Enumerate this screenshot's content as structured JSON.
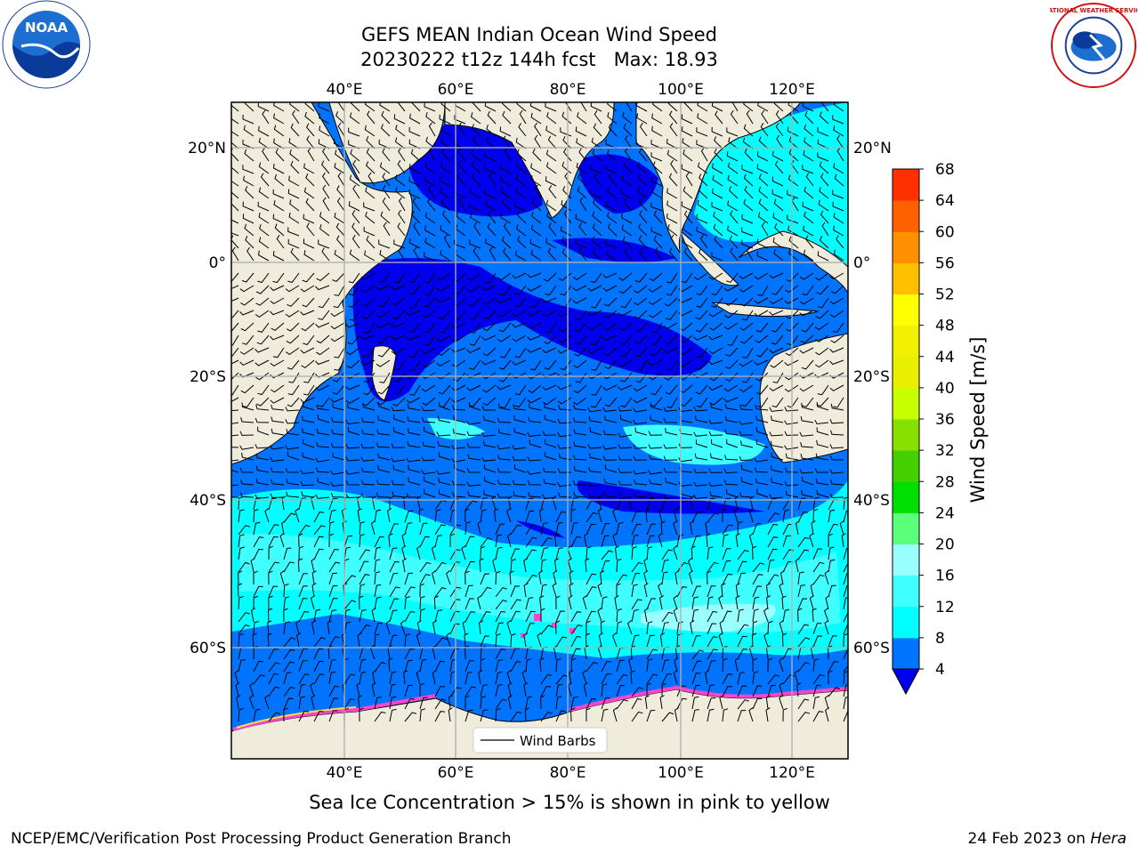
{
  "title": {
    "line1": "GEFS MEAN Indian Ocean Wind Speed",
    "line2": "20230222 t12z 144h fcst   Max: 18.93"
  },
  "map": {
    "lon_ticks_top": [
      "40°E",
      "60°E",
      "80°E",
      "100°E",
      "120°E"
    ],
    "lon_ticks_bottom": [
      "40°E",
      "60°E",
      "80°E",
      "100°E",
      "120°E"
    ],
    "lat_ticks_left": [
      "20°N",
      "0°",
      "20°S",
      "40°S",
      "60°S"
    ],
    "lat_ticks_right": [
      "20°N",
      "0°",
      "20°S",
      "40°S",
      "60°S"
    ],
    "legend_label": "Wind Barbs",
    "colors": {
      "land": "#efecdc",
      "ocean_4_8": "#0073ff",
      "ocean_0_4": "#0000ee",
      "ocean_8_12": "#00ffff",
      "ocean_12_16": "#40ffff",
      "ocean_16_20": "#99ffff",
      "sea_ice": "#ff44cc"
    }
  },
  "colorbar": {
    "label": "Wind Speed [m/s]",
    "ticks": [
      "68",
      "64",
      "60",
      "56",
      "52",
      "48",
      "44",
      "40",
      "36",
      "32",
      "28",
      "24",
      "20",
      "16",
      "12",
      "8",
      "4"
    ],
    "colors": [
      "#0073ff",
      "#00ffff",
      "#40ffff",
      "#99ffff",
      "#5cff7a",
      "#00e000",
      "#44d000",
      "#88e000",
      "#c8ff00",
      "#e8f000",
      "#f0f000",
      "#ffff00",
      "#ffc000",
      "#ff9000",
      "#ff6000",
      "#ff3000",
      "#ff0000"
    ],
    "extend_color": "#0000ee"
  },
  "subtitle": "Sea Ice Concentration > 15% is shown in pink to yellow",
  "footer": {
    "left": "NCEP/EMC/Verification Post Processing Product Generation Branch",
    "right_date": "24 Feb 2023 on ",
    "right_machine": "Hera"
  },
  "logos": {
    "noaa_text": "NOAA",
    "nws_text": "NATIONAL WEATHER SERVICE"
  }
}
